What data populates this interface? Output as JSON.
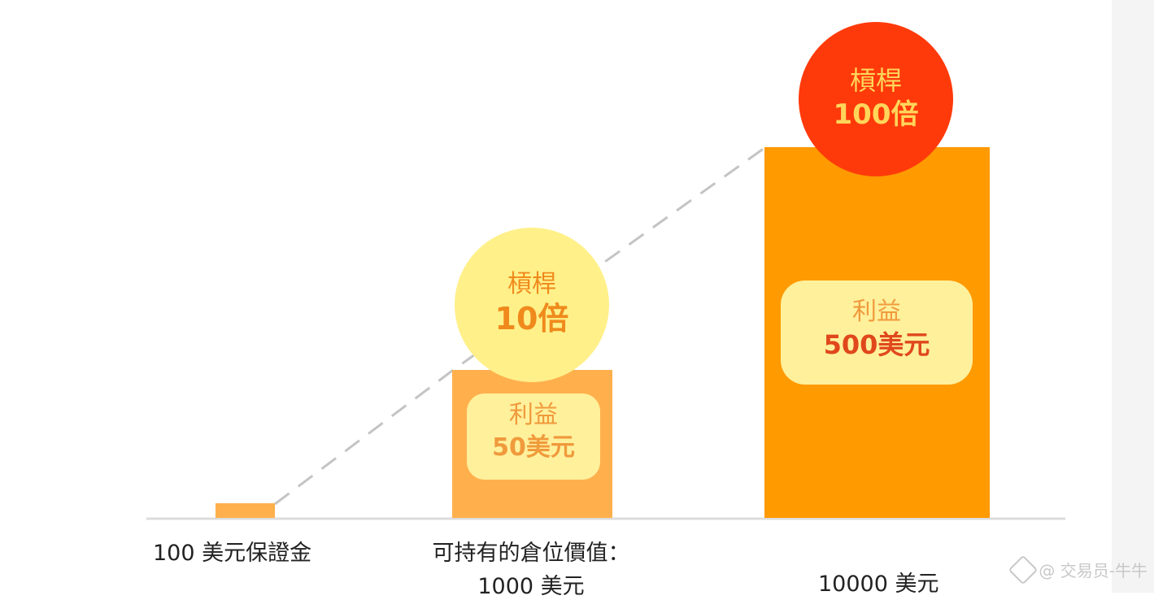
{
  "chart_data": {
    "type": "bar",
    "categories": [
      "100 美元保證金",
      "可持有的倉位價值：1000 美元",
      "10000 美元"
    ],
    "category_lines": [
      [
        "100 美元保證金"
      ],
      [
        "可持有的倉位價值：",
        "1000 美元"
      ],
      [
        "10000 美元"
      ]
    ],
    "values": [
      100,
      1000,
      10000
    ],
    "bars": [
      {
        "color": "#ffb04d",
        "badge": null,
        "profit": null
      },
      {
        "color": "#ffb04d",
        "badge": {
          "line1": "槓桿",
          "line2": "10倍",
          "fill": "#fff08a",
          "text_color": "#f08a1c"
        },
        "profit": {
          "line1": "利益",
          "line2": "50美元",
          "fill": "#fff09c",
          "text_color": "#f09a3c"
        }
      },
      {
        "color": "#ff9a00",
        "badge": {
          "line1": "槓桿",
          "line2": "100倍",
          "fill": "#ff3a0a",
          "text_color": "#ffd65a"
        },
        "profit": {
          "line1": "利益",
          "line2": "500美元",
          "fill": "#fff09c",
          "text_color": "#e0481c",
          "label_color": "#f09a3c"
        }
      }
    ],
    "grid": false,
    "legend": "none"
  },
  "watermark": {
    "text": "@ 交易员-牛牛",
    "icon": "watermark-logo-icon"
  },
  "colors": {
    "baseline": "#dcdcdc",
    "trend_line": "#c4c4c4"
  }
}
